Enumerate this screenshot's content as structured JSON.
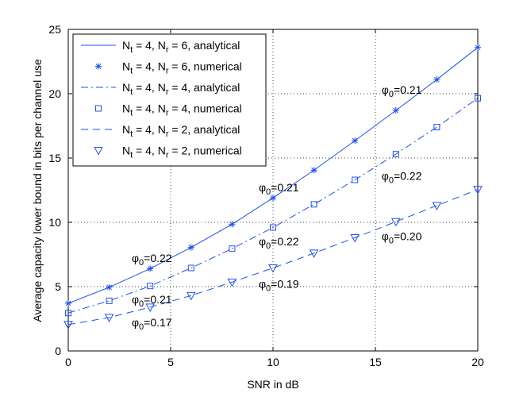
{
  "chart_data": {
    "type": "line",
    "title": "",
    "xlabel": "SNR in dB",
    "ylabel": "Average capacity lower bound in bits per channel use",
    "xlim": [
      0,
      20
    ],
    "ylim": [
      0,
      25
    ],
    "xticks": [
      0,
      5,
      10,
      15,
      20
    ],
    "yticks": [
      0,
      5,
      10,
      15,
      20,
      25
    ],
    "grid": true,
    "legend_position": "top-left",
    "series_color": "#1f50f0",
    "series": [
      {
        "name": "N_t = 4, N_r = 6, analytical",
        "legend": {
          "base": "N",
          "sub1": "t",
          "mid": " = 4, N",
          "sub2": "r",
          "rest": " = 6, analytical"
        },
        "kind": "line",
        "style": "solid",
        "x": [
          0,
          2,
          4,
          6,
          8,
          10,
          12,
          14,
          16,
          18,
          20
        ],
        "y": [
          3.7,
          4.95,
          6.4,
          8.05,
          9.85,
          11.9,
          14.05,
          16.35,
          18.7,
          21.1,
          23.6
        ]
      },
      {
        "name": "N_t = 4, N_r = 6, numerical",
        "legend": {
          "base": "N",
          "sub1": "t",
          "mid": " = 4, N",
          "sub2": "r",
          "rest": " = 6, numerical"
        },
        "kind": "marker",
        "marker": "star",
        "x": [
          0,
          2,
          4,
          6,
          8,
          10,
          12,
          14,
          16,
          18,
          20
        ],
        "y": [
          3.7,
          4.95,
          6.4,
          8.05,
          9.85,
          11.9,
          14.05,
          16.35,
          18.7,
          21.1,
          23.6
        ]
      },
      {
        "name": "N_t = 4, N_r = 4, analytical",
        "legend": {
          "base": "N",
          "sub1": "t",
          "mid": " = 4, N",
          "sub2": "r",
          "rest": " = 4, analytical"
        },
        "kind": "line",
        "style": "dashdot",
        "x": [
          0,
          2,
          4,
          6,
          8,
          10,
          12,
          14,
          16,
          18,
          20
        ],
        "y": [
          2.95,
          3.9,
          5.05,
          6.45,
          7.95,
          9.6,
          11.4,
          13.3,
          15.3,
          17.4,
          19.65
        ]
      },
      {
        "name": "N_t = 4, N_r = 4, numerical",
        "legend": {
          "base": "N",
          "sub1": "t",
          "mid": " = 4, N",
          "sub2": "r",
          "rest": " = 4, numerical"
        },
        "kind": "marker",
        "marker": "square",
        "x": [
          0,
          2,
          4,
          6,
          8,
          10,
          12,
          14,
          16,
          18,
          20
        ],
        "y": [
          2.95,
          3.9,
          5.05,
          6.45,
          7.95,
          9.6,
          11.4,
          13.3,
          15.3,
          17.4,
          19.65
        ]
      },
      {
        "name": "N_t = 4, N_r = 2, analytical",
        "legend": {
          "base": "N",
          "sub1": "t",
          "mid": " = 4, N",
          "sub2": "r",
          "rest": " = 2, analytical"
        },
        "kind": "line",
        "style": "dashed",
        "x": [
          0,
          2,
          4,
          6,
          8,
          10,
          12,
          14,
          16,
          18,
          20
        ],
        "y": [
          2.05,
          2.6,
          3.4,
          4.3,
          5.35,
          6.45,
          7.6,
          8.8,
          10.05,
          11.3,
          12.55
        ]
      },
      {
        "name": "N_t = 4, N_r = 2, numerical",
        "legend": {
          "base": "N",
          "sub1": "t",
          "mid": " = 4, N",
          "sub2": "r",
          "rest": " = 2, numerical"
        },
        "kind": "marker",
        "marker": "triangle-down",
        "x": [
          0,
          2,
          4,
          6,
          8,
          10,
          12,
          14,
          16,
          18,
          20
        ],
        "y": [
          2.05,
          2.6,
          3.4,
          4.3,
          5.35,
          6.45,
          7.6,
          8.8,
          10.05,
          11.3,
          12.55
        ]
      }
    ],
    "annotations": [
      {
        "label": "φ0=0.21",
        "sym": "φ",
        "sub": "0",
        "value": "=0.21",
        "x": 15.3,
        "y": 20.0
      },
      {
        "label": "φ0=0.22",
        "sym": "φ",
        "sub": "0",
        "value": "=0.22",
        "x": 15.3,
        "y": 13.3
      },
      {
        "label": "φ0=0.20",
        "sym": "φ",
        "sub": "0",
        "value": "=0.20",
        "x": 15.3,
        "y": 8.6
      },
      {
        "label": "φ0=0.21",
        "sym": "φ",
        "sub": "0",
        "value": "=0.21",
        "x": 9.3,
        "y": 12.4
      },
      {
        "label": "φ0=0.22",
        "sym": "φ",
        "sub": "0",
        "value": "=0.22",
        "x": 9.3,
        "y": 8.2
      },
      {
        "label": "φ0=0.19",
        "sym": "φ",
        "sub": "0",
        "value": "=0.19",
        "x": 9.3,
        "y": 4.9
      },
      {
        "label": "φ0=0.22",
        "sym": "φ",
        "sub": "0",
        "value": "=0.22",
        "x": 3.1,
        "y": 6.9
      },
      {
        "label": "φ0=0.21",
        "sym": "φ",
        "sub": "0",
        "value": "=0.21",
        "x": 3.1,
        "y": 3.7
      },
      {
        "label": "φ0=0.17",
        "sym": "φ",
        "sub": "0",
        "value": "=0.17",
        "x": 3.1,
        "y": 1.9
      }
    ]
  }
}
